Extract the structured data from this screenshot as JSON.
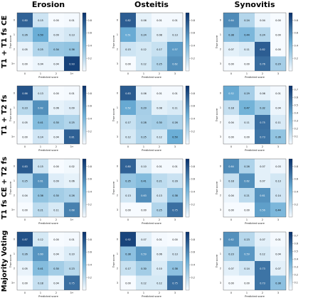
{
  "columns": [
    "Erosion",
    "Osteitis",
    "Synovitis"
  ],
  "rows": [
    "T1 + T1 fs CE",
    "T1 + T2 fs",
    "T1 fs CE + T2 fs",
    "Majority Voting"
  ],
  "colormap": {
    "low": "#f7fbff",
    "mid": "#6baed6",
    "high": "#08306b"
  },
  "chart_data": {
    "type": "heatmap",
    "xlabel": "Predicted score",
    "ylabel": "True score",
    "panels": [
      {
        "row": "T1 + T1 fs CE",
        "column": "Erosion",
        "x_ticks": [
          "0",
          "1",
          "2",
          "3+"
        ],
        "y_ticks": [
          "0",
          "1",
          "2",
          "3+"
        ],
        "colorbar_ticks": [
          "0.8",
          "0.6",
          "0.4",
          "0.2"
        ],
        "matrix": [
          [
            0.8,
            0.15,
            0.0,
            0.01
          ],
          [
            0.26,
            0.5,
            0.09,
            0.13
          ],
          [
            0.05,
            0.25,
            0.34,
            0.36
          ],
          [
            0.0,
            0.04,
            0.04,
            0.93
          ]
        ]
      },
      {
        "row": "T1 + T1 fs CE",
        "column": "Osteitis",
        "x_ticks": [
          "0",
          "1",
          "2",
          "3"
        ],
        "y_ticks": [
          "0",
          "1",
          "2",
          "3"
        ],
        "colorbar_ticks": [
          "0.8",
          "0.6",
          "0.4",
          "0.2"
        ],
        "matrix": [
          [
            0.82,
            0.06,
            0.01,
            0.01
          ],
          [
            0.51,
            0.24,
            0.08,
            0.13
          ],
          [
            0.15,
            0.12,
            0.17,
            0.57
          ],
          [
            0.0,
            0.12,
            0.25,
            0.62
          ]
        ]
      },
      {
        "row": "T1 + T1 fs CE",
        "column": "Synovitis",
        "x_ticks": [
          "0",
          "1",
          "2",
          "3"
        ],
        "y_ticks": [
          "0",
          "1",
          "2",
          "3"
        ],
        "colorbar_ticks": [
          "0.8",
          "0.6",
          "0.4",
          "0.2"
        ],
        "matrix": [
          [
            0.64,
            0.24,
            0.04,
            0.0
          ],
          [
            0.38,
            0.44,
            0.24,
            0.0
          ],
          [
            0.07,
            0.11,
            0.82,
            0.0
          ],
          [
            0.0,
            0.0,
            0.76,
            0.29
          ]
        ]
      },
      {
        "row": "T1 + T2 fs",
        "column": "Erosion",
        "x_ticks": [
          "0",
          "1",
          "2",
          "3+"
        ],
        "y_ticks": [
          "0",
          "1",
          "2",
          "3+"
        ],
        "colorbar_ticks": [
          "0.8",
          "0.6",
          "0.4",
          "0.2"
        ],
        "matrix": [
          [
            0.86,
            0.13,
            0.0,
            0.01
          ],
          [
            0.23,
            0.62,
            0.06,
            0.09
          ],
          [
            0.05,
            0.41,
            0.3,
            0.25
          ],
          [
            0.0,
            0.14,
            0.04,
            0.81
          ]
        ]
      },
      {
        "row": "T1 + T2 fs",
        "column": "Osteitis",
        "x_ticks": [
          "0",
          "1",
          "2",
          "3"
        ],
        "y_ticks": [
          "0",
          "1",
          "2",
          "3"
        ],
        "colorbar_ticks": [
          "0.8",
          "0.6",
          "0.4",
          "0.2"
        ],
        "matrix": [
          [
            0.83,
            0.06,
            0.01,
            0.01
          ],
          [
            0.52,
            0.29,
            0.08,
            0.11
          ],
          [
            0.17,
            0.28,
            0.3,
            0.26
          ],
          [
            0.12,
            0.25,
            0.12,
            0.5
          ]
        ]
      },
      {
        "row": "T1 + T2 fs",
        "column": "Synovitis",
        "x_ticks": [
          "0",
          "1",
          "2",
          "3"
        ],
        "y_ticks": [
          "0",
          "1",
          "2",
          "3"
        ],
        "colorbar_ticks": [
          "0.7",
          "0.6",
          "0.5",
          "0.4",
          "0.3",
          "0.2",
          "0.1"
        ],
        "matrix": [
          [
            0.52,
            0.29,
            0.06,
            0.01
          ],
          [
            0.18,
            0.47,
            0.32,
            0.04
          ],
          [
            0.04,
            0.11,
            0.75,
            0.11
          ],
          [
            0.0,
            0.0,
            0.73,
            0.36
          ]
        ]
      },
      {
        "row": "T1 fs CE + T2 fs",
        "column": "Erosion",
        "x_ticks": [
          "0",
          "1",
          "2",
          "3+"
        ],
        "y_ticks": [
          "0",
          "1",
          "2",
          "3+"
        ],
        "colorbar_ticks": [
          "0.8",
          "0.6",
          "0.4",
          "0.2"
        ],
        "matrix": [
          [
            0.83,
            0.15,
            0.0,
            0.02
          ],
          [
            0.25,
            0.61,
            0.09,
            0.06
          ],
          [
            0.04,
            0.36,
            0.3,
            0.26
          ],
          [
            0.0,
            0.21,
            0.11,
            0.68
          ]
        ]
      },
      {
        "row": "T1 fs CE + T2 fs",
        "column": "Osteitis",
        "x_ticks": [
          "0",
          "1",
          "2",
          "3"
        ],
        "y_ticks": [
          "0",
          "1",
          "2",
          "3"
        ],
        "colorbar_ticks": [
          "0.8",
          "0.6",
          "0.4",
          "0.2"
        ],
        "matrix": [
          [
            0.8,
            0.1,
            0.01,
            0.01
          ],
          [
            0.35,
            0.41,
            0.21,
            0.16
          ],
          [
            0.13,
            0.63,
            0.13,
            0.38
          ],
          [
            0.0,
            0.0,
            0.25,
            0.75
          ]
        ]
      },
      {
        "row": "T1 fs CE + T2 fs",
        "column": "Synovitis",
        "x_ticks": [
          "0",
          "1",
          "2",
          "3"
        ],
        "y_ticks": [
          "0",
          "1",
          "2",
          "3"
        ],
        "colorbar_ticks": [
          "0.8",
          "0.6",
          "0.4",
          "0.2"
        ],
        "matrix": [
          [
            0.64,
            0.26,
            0.07,
            0.03
          ],
          [
            0.18,
            0.62,
            0.07,
            0.13
          ],
          [
            0.04,
            0.21,
            0.61,
            0.14
          ],
          [
            0.0,
            0.0,
            0.56,
            0.44
          ]
        ]
      },
      {
        "row": "Majority Voting",
        "column": "Erosion",
        "x_ticks": [
          "0",
          "1",
          "2",
          "3+"
        ],
        "y_ticks": [
          "0",
          "1",
          "2",
          "3+"
        ],
        "colorbar_ticks": [
          "0.8",
          "0.6",
          "0.4",
          "0.2"
        ],
        "matrix": [
          [
            0.87,
            0.12,
            0.0,
            0.01
          ],
          [
            0.26,
            0.6,
            0.04,
            0.1
          ],
          [
            0.05,
            0.41,
            0.3,
            0.23
          ],
          [
            0.0,
            0.18,
            0.04,
            0.75
          ]
        ]
      },
      {
        "row": "Majority Voting",
        "column": "Osteitis",
        "x_ticks": [
          "0",
          "1",
          "2",
          "3"
        ],
        "y_ticks": [
          "0",
          "1",
          "2",
          "3"
        ],
        "colorbar_ticks": [
          "0.8",
          "0.6",
          "0.4",
          "0.2"
        ],
        "matrix": [
          [
            0.92,
            0.07,
            0.01,
            0.0
          ],
          [
            0.38,
            0.59,
            0.06,
            0.13
          ],
          [
            0.17,
            0.3,
            0.1,
            0.38
          ],
          [
            0.0,
            0.12,
            0.12,
            0.75
          ]
        ]
      },
      {
        "row": "Majority Voting",
        "column": "Synovitis",
        "x_ticks": [
          "0",
          "1",
          "2",
          "3"
        ],
        "y_ticks": [
          "0",
          "1",
          "2",
          "3"
        ],
        "colorbar_ticks": [
          "0.7",
          "0.6",
          "0.5",
          "0.4",
          "0.3",
          "0.2",
          "0.1"
        ],
        "matrix": [
          [
            0.62,
            0.23,
            0.07,
            0.01
          ],
          [
            0.23,
            0.59,
            0.12,
            0.04
          ],
          [
            0.07,
            0.14,
            0.73,
            0.07
          ],
          [
            0.0,
            0.0,
            0.73,
            0.38
          ]
        ]
      }
    ]
  }
}
